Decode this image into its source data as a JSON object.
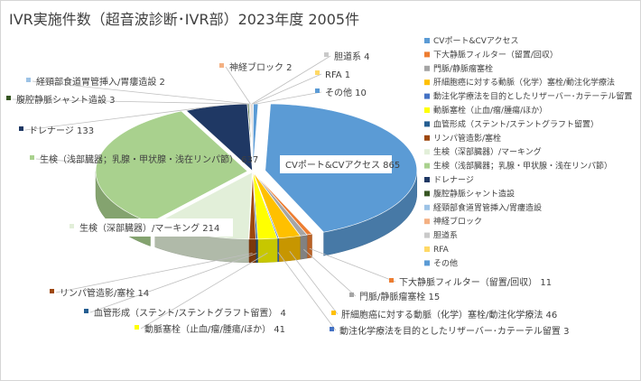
{
  "chart_data": {
    "type": "pie",
    "style": "3d-exploded",
    "title": "IVR実施件数（超音波診断･IVR部）2023年度 2005件",
    "legend_position": "right",
    "series": [
      {
        "name": "CVポート&CVアクセス",
        "value": 865,
        "color": "#5b9bd5"
      },
      {
        "name": "下大静脈フィルター（留置/回収）",
        "value": 11,
        "color": "#ed7d31"
      },
      {
        "name": "門脈/静脈瘤塞栓",
        "value": 15,
        "color": "#a5a5a5"
      },
      {
        "name": "肝細胞癌に対する動脈（化学）塞栓/動注化学療法",
        "value": 46,
        "color": "#ffc000"
      },
      {
        "name": "動注化学療法を目的としたリザーバー･カテーテル留置",
        "value": 3,
        "color": "#4472c4"
      },
      {
        "name": "動脈塞栓（止血/瘤/腫瘍/ほか）",
        "value": 41,
        "color": "#ffff00"
      },
      {
        "name": "血管形成（ステント/ステントグラフト留置）",
        "value": 4,
        "color": "#255e91"
      },
      {
        "name": "リンパ管造影/塞栓",
        "value": 14,
        "color": "#9e480e"
      },
      {
        "name": "生検（深部臓器）/マーキング",
        "value": 214,
        "color": "#e2efd9"
      },
      {
        "name": "生検（浅部臓器；乳腺・甲状腺・浅在リンパ節）",
        "value": 637,
        "color": "#a9d18e"
      },
      {
        "name": "ドレナージ",
        "value": 133,
        "color": "#1f3864"
      },
      {
        "name": "腹腔静脈シャント造設",
        "value": 3,
        "color": "#375623"
      },
      {
        "name": "経頸部食道胃管挿入/胃瘻造設",
        "value": 2,
        "color": "#9dc3e6"
      },
      {
        "name": "神経ブロック",
        "value": 2,
        "color": "#f4b183"
      },
      {
        "name": "胆道系",
        "value": 4,
        "color": "#c9c9c9"
      },
      {
        "name": "RFA",
        "value": 1,
        "color": "#ffd966"
      },
      {
        "name": "その他",
        "value": 10,
        "color": "#5b9bd5"
      }
    ]
  },
  "labels": [
    "CVポート&CVアクセス 865",
    "下大静脈フィルター（留置/回収） 11",
    "門脈/静脈瘤塞栓 15",
    "肝細胞癌に対する動脈（化学）塞栓/動注化学療法 46",
    "動注化学療法を目的としたリザーバー･カテーテル留置 3",
    "動脈塞栓（止血/瘤/腫瘍/ほか） 41",
    "血管形成（ステント/ステントグラフト留置） 4",
    "リンパ管造影/塞栓 14",
    "生検（深部臓器）/マーキング 214",
    "生検（浅部臓器；乳腺・甲状腺・浅在リンパ節） 637",
    "ドレナージ 133",
    "腹腔静脈シャント造設 3",
    "経頸部食道胃管挿入/胃瘻造設 2",
    "神経ブロック 2",
    "胆道系 4",
    "RFA 1",
    "その他 10"
  ]
}
